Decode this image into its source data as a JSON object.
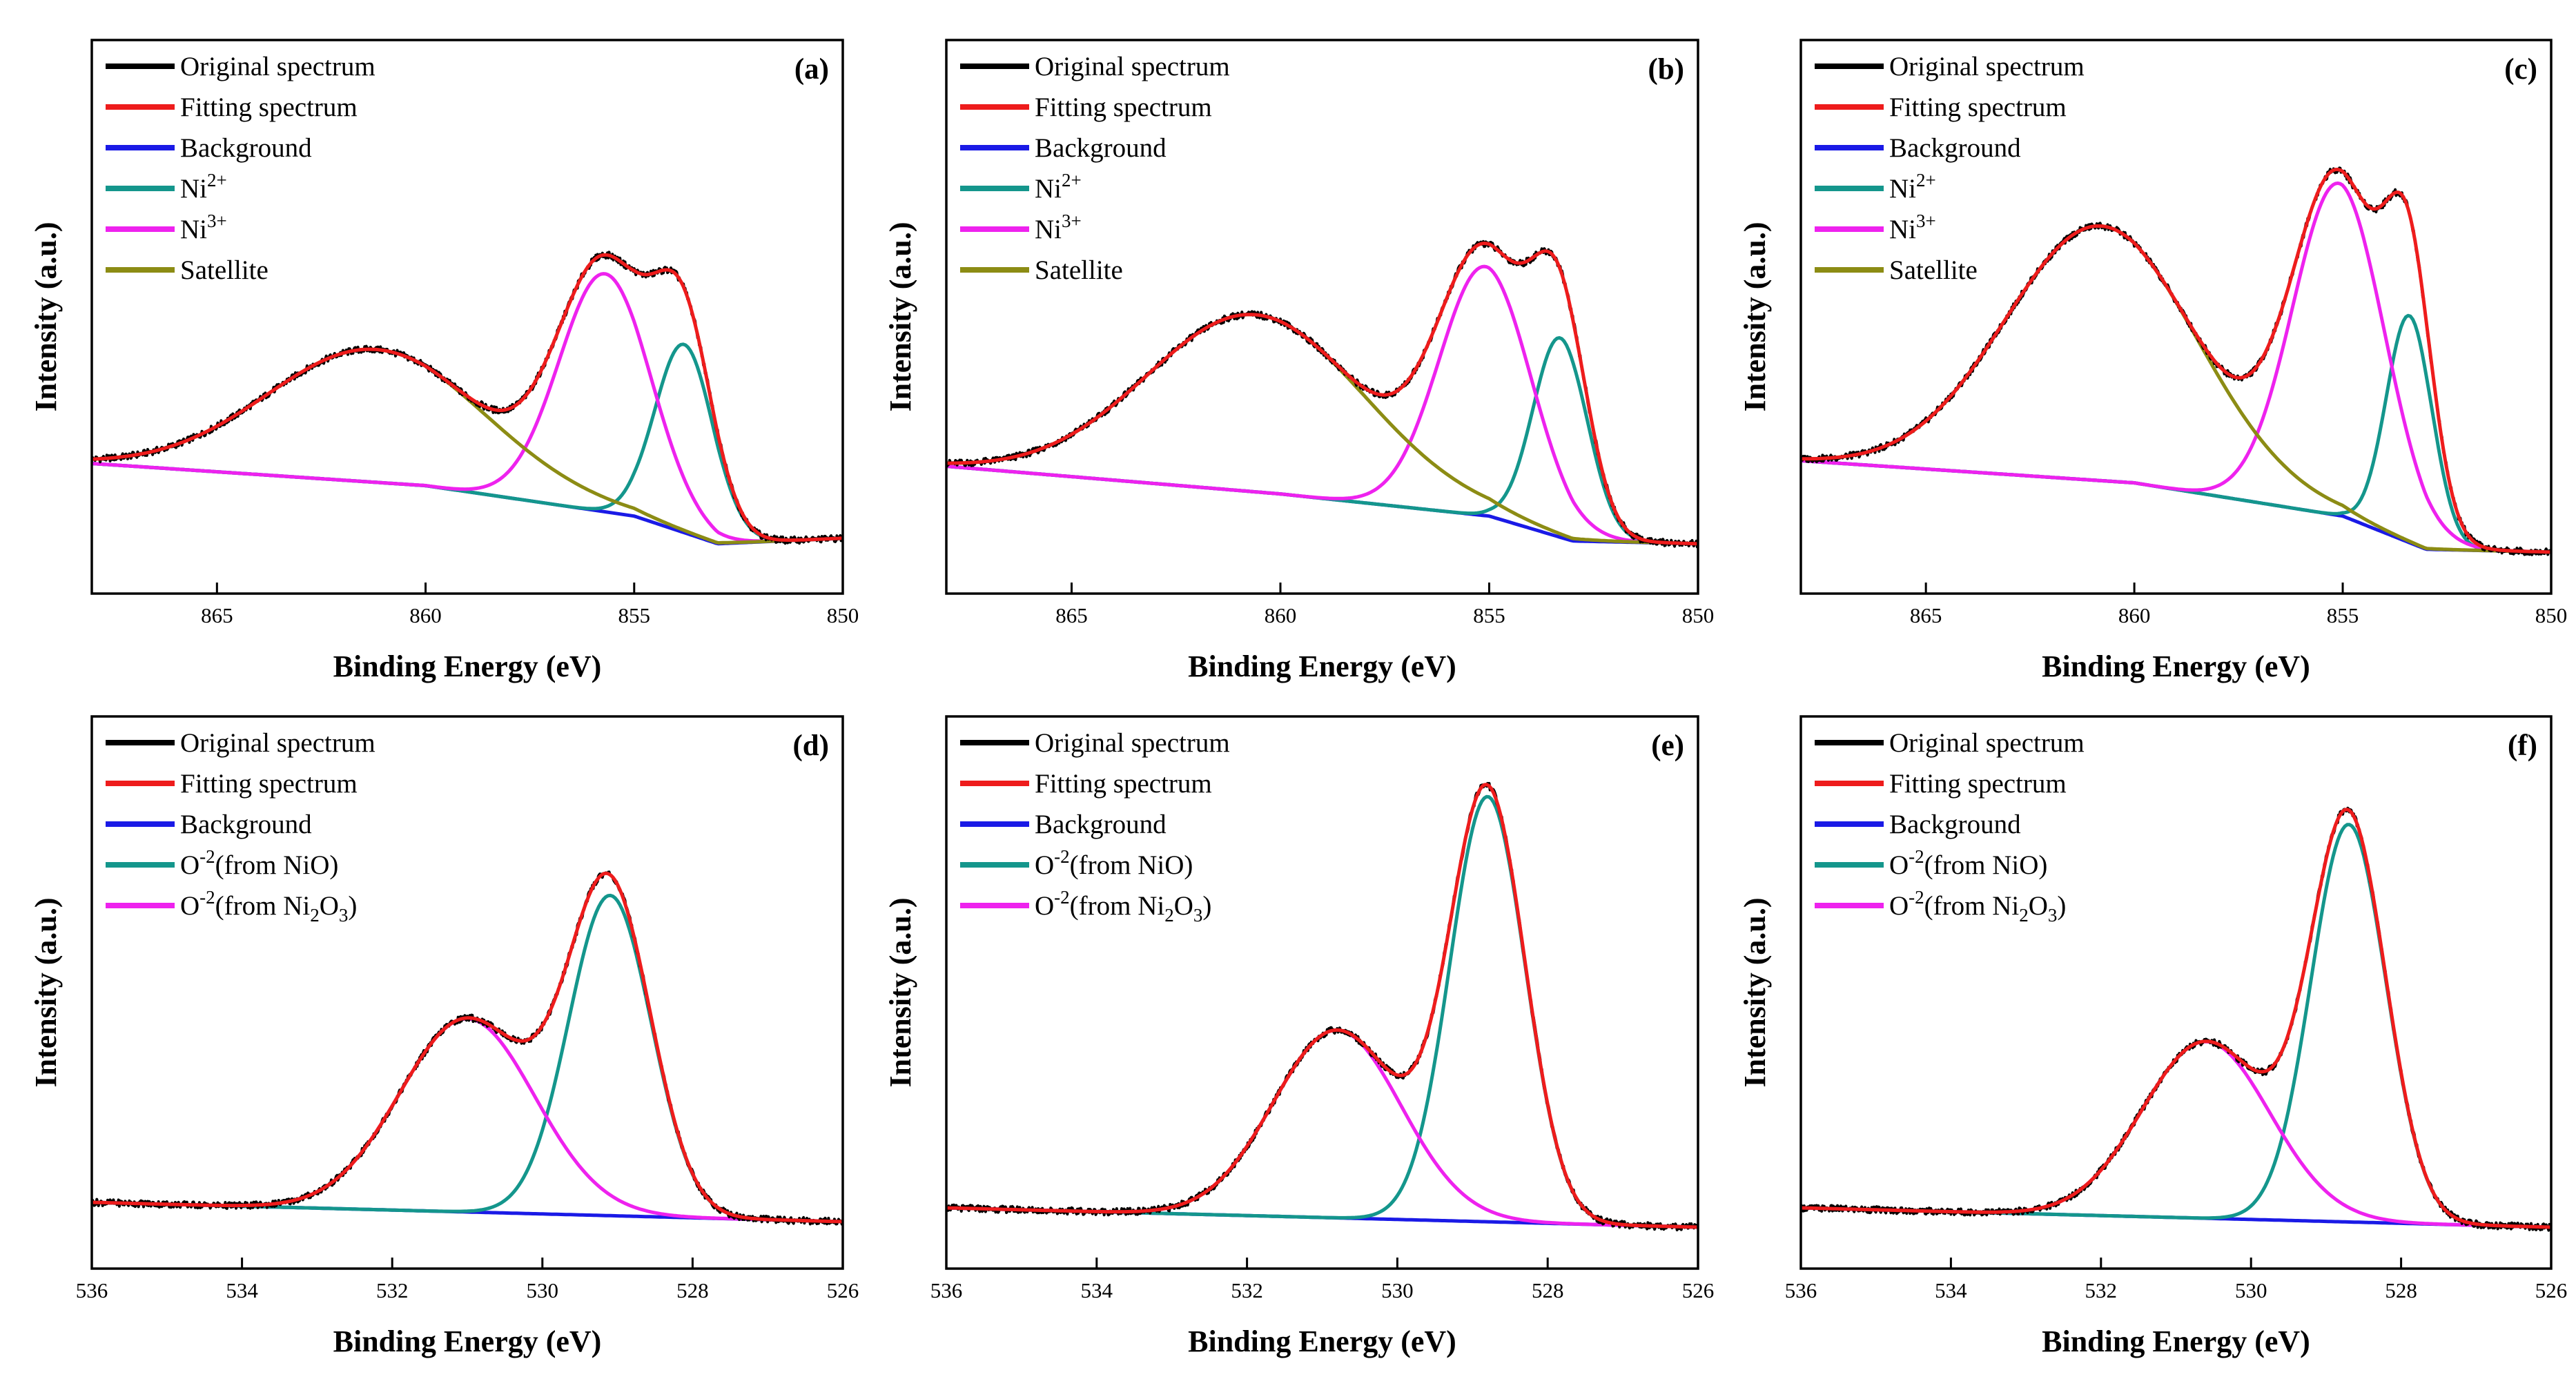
{
  "chart_data": [
    {
      "type": "line",
      "panel_label": "(a)",
      "xlabel": "Binding Energy (eV)",
      "ylabel": "Intensity (a.u.)",
      "xlim": [
        868,
        850
      ],
      "x_ticks": [
        865,
        860,
        855,
        850
      ],
      "ylim": [
        0,
        1
      ],
      "legend": [
        {
          "label": "Original spectrum",
          "color": "#000000"
        },
        {
          "label": "Fitting spectrum",
          "color": "#ee1c1c"
        },
        {
          "label": "Background",
          "color": "#1a1ae6"
        },
        {
          "label": "Ni",
          "sup": "2+",
          "color": "#14968c"
        },
        {
          "label": "Ni",
          "sup": "3+",
          "color": "#ee22ee"
        },
        {
          "label": "Satellite",
          "color": "#8c8c14"
        }
      ],
      "background": {
        "x": [
          868,
          860,
          855,
          853,
          850
        ],
        "y": [
          0.235,
          0.195,
          0.14,
          0.09,
          0.1
        ]
      },
      "series": [
        {
          "name": "Ni2+",
          "color": "#14968c",
          "peaks": [
            {
              "center": 853.8,
              "amplitude": 0.34,
              "width": 0.7
            }
          ]
        },
        {
          "name": "Ni3+",
          "color": "#ee22ee",
          "peaks": [
            {
              "center": 855.7,
              "amplitude": 0.43,
              "width": 1.1
            }
          ]
        },
        {
          "name": "Satellite",
          "color": "#8c8c14",
          "peaks": [
            {
              "center": 861.2,
              "amplitude": 0.24,
              "width": 2.6
            }
          ]
        }
      ]
    },
    {
      "type": "line",
      "panel_label": "(b)",
      "xlabel": "Binding Energy (eV)",
      "ylabel": "Intensity (a.u.)",
      "xlim": [
        868,
        850
      ],
      "x_ticks": [
        865,
        860,
        855,
        850
      ],
      "ylim": [
        0,
        1
      ],
      "legend": [
        {
          "label": "Original spectrum",
          "color": "#000000"
        },
        {
          "label": "Fitting spectrum",
          "color": "#ee1c1c"
        },
        {
          "label": "Background",
          "color": "#1a1ae6"
        },
        {
          "label": "Ni",
          "sup": "2+",
          "color": "#14968c"
        },
        {
          "label": "Ni",
          "sup": "3+",
          "color": "#ee22ee"
        },
        {
          "label": "Satellite",
          "color": "#8c8c14"
        }
      ],
      "background": {
        "x": [
          868,
          860,
          855,
          853,
          850
        ],
        "y": [
          0.23,
          0.18,
          0.14,
          0.095,
          0.09
        ]
      },
      "series": [
        {
          "name": "Ni2+",
          "color": "#14968c",
          "peaks": [
            {
              "center": 853.3,
              "amplitude": 0.36,
              "width": 0.65
            }
          ]
        },
        {
          "name": "Ni3+",
          "color": "#ee22ee",
          "peaks": [
            {
              "center": 855.1,
              "amplitude": 0.45,
              "width": 1.1
            }
          ]
        },
        {
          "name": "Satellite",
          "color": "#8c8c14",
          "peaks": [
            {
              "center": 860.6,
              "amplitude": 0.32,
              "width": 2.6
            }
          ]
        }
      ]
    },
    {
      "type": "line",
      "panel_label": "(c)",
      "xlabel": "Binding Energy (eV)",
      "ylabel": "Intensity (a.u.)",
      "xlim": [
        868,
        850
      ],
      "x_ticks": [
        865,
        860,
        855,
        850
      ],
      "ylim": [
        0,
        1
      ],
      "legend": [
        {
          "label": "Original spectrum",
          "color": "#000000"
        },
        {
          "label": "Fitting spectrum",
          "color": "#ee1c1c"
        },
        {
          "label": "Background",
          "color": "#1a1ae6"
        },
        {
          "label": "Ni",
          "sup": "2+",
          "color": "#14968c"
        },
        {
          "label": "Ni",
          "sup": "3+",
          "color": "#ee22ee"
        },
        {
          "label": "Satellite",
          "color": "#8c8c14"
        }
      ],
      "background": {
        "x": [
          868,
          860,
          855,
          853,
          850
        ],
        "y": [
          0.24,
          0.2,
          0.14,
          0.08,
          0.075
        ]
      },
      "series": [
        {
          "name": "Ni2+",
          "color": "#14968c",
          "peaks": [
            {
              "center": 853.4,
              "amplitude": 0.41,
              "width": 0.55
            }
          ]
        },
        {
          "name": "Ni3+",
          "color": "#ee22ee",
          "peaks": [
            {
              "center": 855.1,
              "amplitude": 0.6,
              "width": 1.1
            }
          ]
        },
        {
          "name": "Satellite",
          "color": "#8c8c14",
          "peaks": [
            {
              "center": 860.8,
              "amplitude": 0.46,
              "width": 2.3
            }
          ]
        }
      ]
    },
    {
      "type": "line",
      "panel_label": "(d)",
      "xlabel": "Binding Energy (eV)",
      "ylabel": "Intensity (a.u.)",
      "xlim": [
        536,
        526
      ],
      "x_ticks": [
        536,
        534,
        532,
        530,
        528,
        526
      ],
      "ylim": [
        0,
        1
      ],
      "legend": [
        {
          "label": "Original spectrum",
          "color": "#000000"
        },
        {
          "label": "Fitting spectrum",
          "color": "#ee1c1c"
        },
        {
          "label": "Background",
          "color": "#1a1ae6"
        },
        {
          "label": "O",
          "sup": "-2",
          "suffix": "(from NiO)",
          "color": "#14968c"
        },
        {
          "label": "O",
          "sup": "-2",
          "suffix_parts": [
            "(from Ni",
            "2",
            "O",
            "3",
            ")"
          ],
          "color": "#ee22ee"
        }
      ],
      "background": {
        "x": [
          536,
          526
        ],
        "y": [
          0.12,
          0.085
        ]
      },
      "series": [
        {
          "name": "O-2 (from NiO)",
          "color": "#14968c",
          "peaks": [
            {
              "center": 529.1,
              "amplitude": 0.58,
              "width": 0.55
            }
          ]
        },
        {
          "name": "O-2 (from Ni2O3)",
          "color": "#ee22ee",
          "peaks": [
            {
              "center": 531.0,
              "amplitude": 0.35,
              "width": 0.9
            }
          ]
        }
      ]
    },
    {
      "type": "line",
      "panel_label": "(e)",
      "xlabel": "Binding Energy (eV)",
      "ylabel": "Intensity (a.u.)",
      "xlim": [
        536,
        526
      ],
      "x_ticks": [
        536,
        534,
        532,
        530,
        528,
        526
      ],
      "ylim": [
        0,
        1
      ],
      "legend": [
        {
          "label": "Original spectrum",
          "color": "#000000"
        },
        {
          "label": "Fitting spectrum",
          "color": "#ee1c1c"
        },
        {
          "label": "Background",
          "color": "#1a1ae6"
        },
        {
          "label": "O",
          "sup": "-2",
          "suffix": "(from NiO)",
          "color": "#14968c"
        },
        {
          "label": "O",
          "sup": "-2",
          "suffix_parts": [
            "(from Ni",
            "2",
            "O",
            "3",
            ")"
          ],
          "color": "#ee22ee"
        }
      ],
      "background": {
        "x": [
          536,
          526
        ],
        "y": [
          0.11,
          0.075
        ]
      },
      "series": [
        {
          "name": "O-2 (from NiO)",
          "color": "#14968c",
          "peaks": [
            {
              "center": 528.8,
              "amplitude": 0.77,
              "width": 0.5
            }
          ]
        },
        {
          "name": "O-2 (from Ni2O3)",
          "color": "#ee22ee",
          "peaks": [
            {
              "center": 530.8,
              "amplitude": 0.34,
              "width": 0.85
            }
          ]
        }
      ]
    },
    {
      "type": "line",
      "panel_label": "(f)",
      "xlabel": "Binding Energy (eV)",
      "ylabel": "Intensity (a.u.)",
      "xlim": [
        536,
        526
      ],
      "x_ticks": [
        536,
        534,
        532,
        530,
        528,
        526
      ],
      "ylim": [
        0,
        1
      ],
      "legend": [
        {
          "label": "Original spectrum",
          "color": "#000000"
        },
        {
          "label": "Fitting spectrum",
          "color": "#ee1c1c"
        },
        {
          "label": "Background",
          "color": "#1a1ae6"
        },
        {
          "label": "O",
          "sup": "-2",
          "suffix": "(from NiO)",
          "color": "#14968c"
        },
        {
          "label": "O",
          "sup": "-2",
          "suffix_parts": [
            "(from Ni",
            "2",
            "O",
            "3",
            ")"
          ],
          "color": "#ee22ee"
        }
      ],
      "background": {
        "x": [
          536,
          526
        ],
        "y": [
          0.11,
          0.075
        ]
      },
      "series": [
        {
          "name": "O-2 (from NiO)",
          "color": "#14968c",
          "peaks": [
            {
              "center": 528.7,
              "amplitude": 0.72,
              "width": 0.5
            }
          ]
        },
        {
          "name": "O-2 (from Ni2O3)",
          "color": "#ee22ee",
          "peaks": [
            {
              "center": 530.6,
              "amplitude": 0.32,
              "width": 0.85
            }
          ]
        }
      ]
    }
  ]
}
